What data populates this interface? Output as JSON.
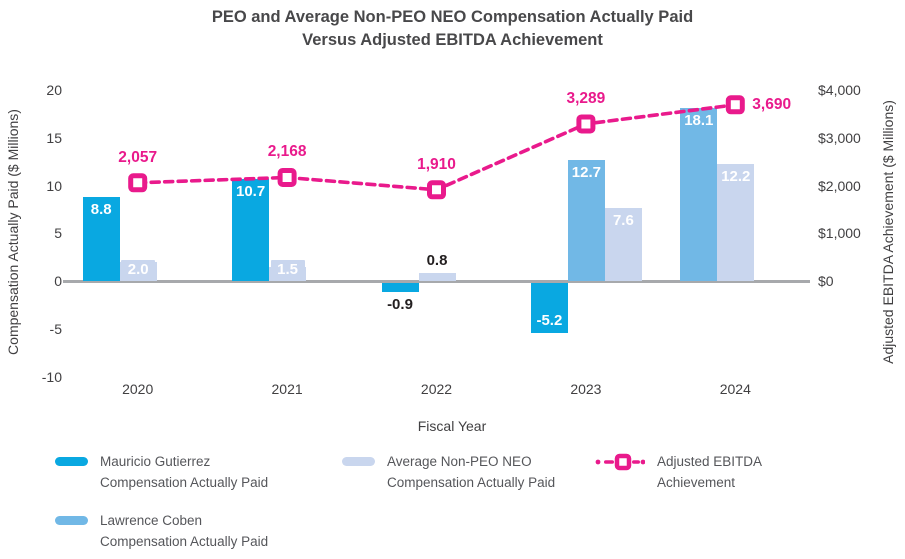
{
  "title": {
    "line1": "PEO and Average Non-PEO NEO Compensation Actually Paid",
    "line2": "Versus Adjusted EBITDA Achievement"
  },
  "chart_data": {
    "type": "bar+line",
    "categories": [
      "2020",
      "2021",
      "2022",
      "2023",
      "2024"
    ],
    "series": [
      {
        "name": "Mauricio Gutierrez Compensation Actually Paid",
        "type": "bar",
        "axis": "left",
        "color": "#09A8E1",
        "values": [
          8.8,
          10.7,
          -0.9,
          -5.2,
          null
        ],
        "labels": [
          "8.8",
          "10.7",
          "-0.9",
          "-5.2",
          null
        ],
        "label_placement": [
          "inside-top",
          "inside-top",
          "below",
          "inside-bottom",
          null
        ]
      },
      {
        "name": "Lawrence Coben Compensation Actually Paid",
        "type": "bar",
        "axis": "left",
        "color": "#71B8E6",
        "values": [
          null,
          null,
          null,
          12.7,
          18.1
        ],
        "labels": [
          null,
          null,
          null,
          "12.7",
          "18.1"
        ],
        "label_placement": [
          null,
          null,
          null,
          "inside-top",
          "inside-top"
        ]
      },
      {
        "name": "Average Non-PEO NEO Compensation Actually Paid",
        "type": "bar",
        "axis": "left",
        "color": "#C9D6EE",
        "values": [
          2.0,
          1.5,
          0.8,
          7.6,
          12.2
        ],
        "labels": [
          "2.0",
          "1.5",
          "0.8",
          "7.6",
          "12.2"
        ],
        "label_placement": [
          "tab",
          "tab",
          "above",
          "inside-top",
          "inside-top"
        ]
      },
      {
        "name": "Adjusted EBITDA Achievement",
        "type": "line",
        "axis": "right",
        "color": "#E91A8C",
        "line_style": "dashed",
        "marker": "open-square",
        "values": [
          2057,
          2168,
          1910,
          3289,
          3690
        ],
        "labels": [
          "2,057",
          "2,168",
          "1,910",
          "3,289",
          "3,690"
        ],
        "label_placement": [
          "above",
          "above",
          "above",
          "above",
          "right"
        ]
      }
    ],
    "xlabel": "Fiscal Year",
    "ylabel_left": "Compensation Actually Paid ($ Millions)",
    "ylabel_right": "Adjusted EBITDA Achievement ($ Millions)",
    "ylim_left": [
      -10,
      20
    ],
    "ylim_right": [
      0,
      4000
    ],
    "yticks_left": [
      {
        "label": "20",
        "value": 20
      },
      {
        "label": "15",
        "value": 15
      },
      {
        "label": "10",
        "value": 10
      },
      {
        "label": "5",
        "value": 5
      },
      {
        "label": "0",
        "value": 0
      },
      {
        "label": "-5",
        "value": -5
      },
      {
        "label": "-10",
        "value": -10
      }
    ],
    "yticks_right": [
      {
        "label": "$4,000",
        "value": 4000
      },
      {
        "label": "$3,000",
        "value": 3000
      },
      {
        "label": "$2,000",
        "value": 2000
      },
      {
        "label": "$1,000",
        "value": 1000
      },
      {
        "label": "$0",
        "value": 0
      }
    ],
    "grid": "off",
    "legend_position": "bottom"
  },
  "legend": {
    "items": [
      {
        "color": "#09A8E1",
        "swatch": "bar",
        "line1": "Mauricio Gutierrez",
        "line2": "Compensation Actually Paid"
      },
      {
        "color": "#71B8E6",
        "swatch": "bar",
        "line1": "Lawrence Coben",
        "line2": "Compensation Actually Paid"
      },
      {
        "color": "#C9D6EE",
        "swatch": "bar",
        "line1": "Average Non-PEO NEO",
        "line2": "Compensation Actually Paid"
      },
      {
        "color": "#E91A8C",
        "swatch": "dashed-line-square-marker",
        "line1": "Adjusted EBITDA",
        "line2": "Achievement"
      }
    ]
  },
  "colors": {
    "peo1_bar": "#09A8E1",
    "peo2_bar": "#71B8E6",
    "avg_bar": "#C9D6EE",
    "ebitda_line": "#E91A8C",
    "axis_line": "#A7A9AC",
    "text_dark": "#414042",
    "bar_label_dark": "#231F20",
    "title_text": "#48484A"
  }
}
